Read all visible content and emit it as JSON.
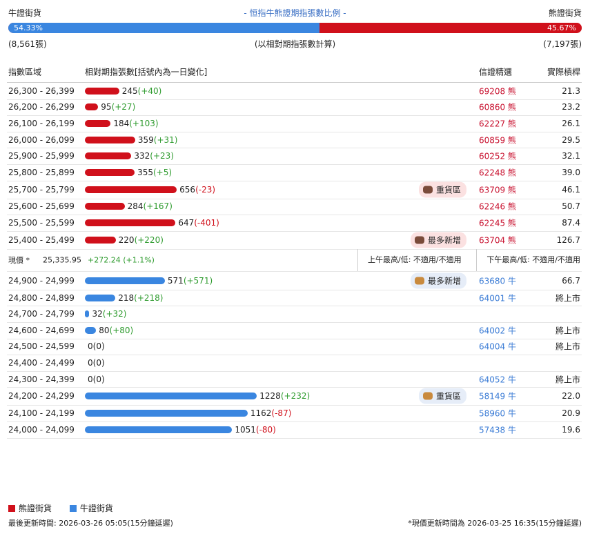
{
  "header": {
    "bull_label": "牛證街貨",
    "title": "- 恒指牛熊證期指張數比例 -",
    "bear_label": "熊證街貨",
    "bull_pct": {
      "value": 54.33,
      "label": "54.33%"
    },
    "bear_pct": {
      "value": 45.67,
      "label": "45.67%"
    },
    "bull_count": "(8,561張)",
    "note": "(以相對期指張數計算)",
    "bear_count": "(7,197張)"
  },
  "columns": [
    "指數區域",
    "相對期指張數[括號內為一日變化]",
    "信證精選",
    "實際槓桿"
  ],
  "bear_rows": [
    {
      "range": "26,300 - 26,399",
      "count": 245,
      "change": "(+40)",
      "code": "69208 熊",
      "leverage": "21.3"
    },
    {
      "range": "26,200 - 26,299",
      "count": 95,
      "change": "(+27)",
      "code": "60860 熊",
      "leverage": "23.2"
    },
    {
      "range": "26,100 - 26,199",
      "count": 184,
      "change": "(+103)",
      "code": "62227 熊",
      "leverage": "26.1"
    },
    {
      "range": "26,000 - 26,099",
      "count": 359,
      "change": "(+31)",
      "code": "60859 熊",
      "leverage": "29.5"
    },
    {
      "range": "25,900 - 25,999",
      "count": 332,
      "change": "(+23)",
      "code": "60252 熊",
      "leverage": "32.1"
    },
    {
      "range": "25,800 - 25,899",
      "count": 355,
      "change": "(+5)",
      "code": "62248 熊",
      "leverage": "39.0"
    },
    {
      "range": "25,700 - 25,799",
      "count": 656,
      "change": "(-23)",
      "tag": "重貨區",
      "code": "63709 熊",
      "leverage": "46.1"
    },
    {
      "range": "25,600 - 25,699",
      "count": 284,
      "change": "(+167)",
      "code": "62246 熊",
      "leverage": "50.7"
    },
    {
      "range": "25,500 - 25,599",
      "count": 647,
      "change": "(-401)",
      "code": "62245 熊",
      "leverage": "87.4"
    },
    {
      "range": "25,400 - 25,499",
      "count": 220,
      "change": "(+220)",
      "tag": "最多新增",
      "code": "63704 熊",
      "leverage": "126.7"
    }
  ],
  "price": {
    "label": "現價 *",
    "value": "25,335.95",
    "change": "+272.24 (+1.1%)",
    "am": "上午最高/低: 不適用/不適用",
    "pm": "下午最高/低: 不適用/不適用"
  },
  "bull_rows": [
    {
      "range": "24,900 - 24,999",
      "count": 571,
      "change": "(+571)",
      "tag": "最多新增",
      "code": "63680 牛",
      "leverage": "66.7"
    },
    {
      "range": "24,800 - 24,899",
      "count": 218,
      "change": "(+218)",
      "code": "64001 牛",
      "leverage": "將上市"
    },
    {
      "range": "24,700 - 24,799",
      "count": 32,
      "change": "(+32)"
    },
    {
      "range": "24,600 - 24,699",
      "count": 80,
      "change": "(+80)",
      "code": "64002 牛",
      "leverage": "將上市"
    },
    {
      "range": "24,500 - 24,599",
      "count": 0,
      "change": "(0)",
      "code": "64004 牛",
      "leverage": "將上市"
    },
    {
      "range": "24,400 - 24,499",
      "count": 0,
      "change": "(0)"
    },
    {
      "range": "24,300 - 24,399",
      "count": 0,
      "change": "(0)",
      "code": "64052 牛",
      "leverage": "將上市"
    },
    {
      "range": "24,200 - 24,299",
      "count": 1228,
      "change": "(+232)",
      "tag": "重貨區",
      "code": "58149 牛",
      "leverage": "22.0"
    },
    {
      "range": "24,100 - 24,199",
      "count": 1162,
      "change": "(-87)",
      "code": "58960 牛",
      "leverage": "20.9"
    },
    {
      "range": "24,000 - 24,099",
      "count": 1051,
      "change": "(-80)",
      "code": "57438 牛",
      "leverage": "19.6"
    }
  ],
  "legend": [
    "熊證街貨",
    "牛證街貨"
  ],
  "footer": {
    "left": "最後更新時間: 2026-03-26 05:05(15分鐘延遲)",
    "right": "*現價更新時間為 2026-03-25 16:35(15分鐘延遲)"
  }
}
